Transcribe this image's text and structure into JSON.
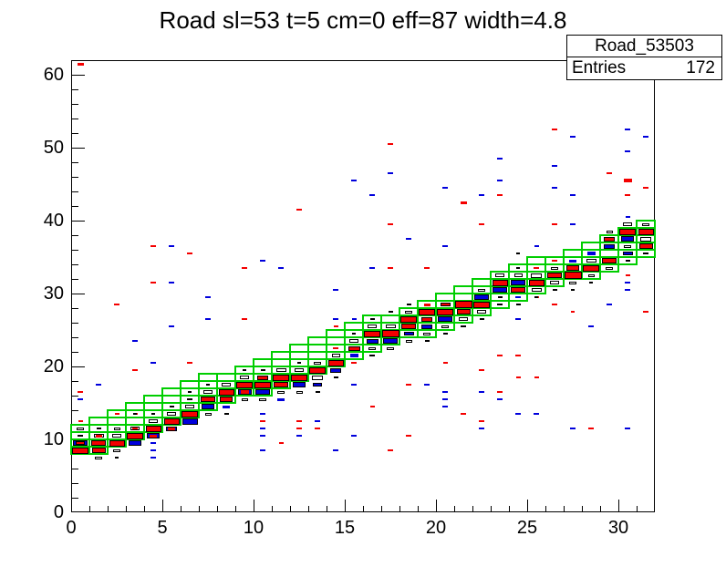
{
  "title": "Road sl=53 t=5 cm=0 eff=87 width=4.8",
  "stats": {
    "name": "Road_53503",
    "entries_label": "Entries",
    "entries_value": "172"
  },
  "chart_data": {
    "type": "heatmap",
    "title": "Road sl=53 t=5 cm=0 eff=87 width=4.8",
    "xlabel": "",
    "ylabel": "",
    "x_range": [
      0,
      32
    ],
    "y_range": [
      0,
      62
    ],
    "x_major_ticks": [
      0,
      5,
      10,
      15,
      20,
      25,
      30
    ],
    "x_minor_step": 1,
    "y_major_ticks": [
      0,
      10,
      20,
      30,
      40,
      50,
      60
    ],
    "y_minor_step": 2,
    "grid": false,
    "legend": false,
    "colors": {
      "road_green": "#00CE00",
      "hit_red": "#F40000",
      "hit_blue": "#0000DC",
      "hit_black": "#000000",
      "hit_hollow_fill": "#FFFFFF",
      "axis": "#000000"
    },
    "road": {
      "n_columns": 32,
      "center_start": 10.0,
      "slope_per_bin": 0.887,
      "half_width": 2.4,
      "width_label": 4.8
    },
    "hits": {
      "white": [
        [
          0,
          11,
          0.4
        ],
        [
          1,
          10,
          0.55
        ],
        [
          1,
          7,
          0.4
        ],
        [
          2,
          10,
          0.5
        ],
        [
          2,
          11,
          0.35
        ],
        [
          2,
          8,
          0.4
        ],
        [
          3,
          11,
          0.5
        ],
        [
          4,
          12,
          0.5
        ],
        [
          5,
          13,
          0.5
        ],
        [
          6,
          14,
          0.5
        ],
        [
          6,
          15,
          0.3
        ],
        [
          7,
          16,
          0.5
        ],
        [
          7,
          13,
          0.35
        ],
        [
          8,
          17,
          0.5
        ],
        [
          9,
          18,
          0.5
        ],
        [
          9,
          15,
          0.35
        ],
        [
          10,
          15,
          0.4
        ],
        [
          11,
          19,
          0.55
        ],
        [
          11,
          16,
          0.4
        ],
        [
          12,
          19,
          0.5
        ],
        [
          12,
          16,
          0.35
        ],
        [
          13,
          18,
          0.6
        ],
        [
          13,
          20,
          0.4
        ],
        [
          14,
          21,
          0.45
        ],
        [
          15,
          23,
          0.5
        ],
        [
          16,
          25,
          0.5
        ],
        [
          16,
          22,
          0.4
        ],
        [
          17,
          25,
          0.55
        ],
        [
          17,
          22,
          0.4
        ],
        [
          18,
          27,
          0.4
        ],
        [
          18,
          23,
          0.35
        ],
        [
          19,
          24,
          0.4
        ],
        [
          20,
          25,
          0.4
        ],
        [
          21,
          26,
          0.5
        ],
        [
          22,
          27,
          0.5
        ],
        [
          22,
          30,
          0.4
        ],
        [
          23,
          32,
          0.5
        ],
        [
          23,
          28,
          0.3
        ],
        [
          24,
          32,
          0.45
        ],
        [
          25,
          32,
          0.6
        ],
        [
          25,
          30,
          0.55
        ],
        [
          26,
          31,
          0.5
        ],
        [
          26,
          33,
          0.4
        ],
        [
          27,
          31,
          0.4
        ],
        [
          28,
          34,
          0.55
        ],
        [
          28,
          32,
          0.35
        ],
        [
          29,
          33,
          0.4
        ],
        [
          29,
          38,
          0.35
        ],
        [
          30,
          39,
          0.5
        ],
        [
          30,
          36,
          0.4
        ],
        [
          31,
          37,
          0.6
        ],
        [
          31,
          39,
          0.4
        ]
      ],
      "blue": [
        [
          0,
          9,
          0.8
        ],
        [
          1,
          8,
          0.45
        ],
        [
          3,
          9,
          0.7
        ],
        [
          4,
          10,
          0.7
        ],
        [
          5,
          11,
          0.6
        ],
        [
          6,
          12,
          0.85
        ],
        [
          7,
          14,
          0.7
        ],
        [
          8,
          14,
          0.4
        ],
        [
          9,
          16,
          0.75
        ],
        [
          10,
          16,
          0.8
        ],
        [
          11,
          15,
          0.4
        ],
        [
          12,
          17,
          0.7
        ],
        [
          13,
          17,
          0.5
        ],
        [
          14,
          19,
          0.6
        ],
        [
          15,
          21,
          0.45
        ],
        [
          16,
          23,
          0.65
        ],
        [
          17,
          23,
          0.8
        ],
        [
          18,
          24,
          0.55
        ],
        [
          19,
          25,
          0.6
        ],
        [
          20,
          26,
          0.8
        ],
        [
          21,
          27,
          0.45
        ],
        [
          22,
          29,
          0.8
        ],
        [
          23,
          30,
          0.8
        ],
        [
          24,
          31,
          0.8
        ],
        [
          24,
          29,
          0.3
        ],
        [
          27,
          34,
          0.4
        ],
        [
          28,
          35,
          0.45
        ],
        [
          29,
          36,
          0.6
        ],
        [
          30,
          37,
          0.7
        ],
        [
          30,
          35,
          0.55
        ],
        [
          31,
          36,
          0.5
        ],
        [
          15,
          45,
          0.3
        ],
        [
          10,
          34,
          0.3
        ],
        [
          11,
          33,
          0.3
        ],
        [
          5,
          36,
          0.3
        ],
        [
          30,
          52,
          0.3
        ],
        [
          27,
          51,
          0.3
        ],
        [
          31,
          51,
          0.3
        ],
        [
          30,
          49,
          0.3
        ],
        [
          23,
          48,
          0.3
        ],
        [
          26,
          47,
          0.3
        ],
        [
          17,
          46,
          0.3
        ],
        [
          23,
          45,
          0.3
        ],
        [
          26,
          44,
          0.3
        ],
        [
          20,
          44,
          0.3
        ],
        [
          16,
          43,
          0.3
        ],
        [
          22,
          43,
          0.3
        ],
        [
          27,
          43,
          0.3
        ],
        [
          27,
          39,
          0.3
        ],
        [
          30,
          40,
          0.25
        ],
        [
          18,
          37,
          0.3
        ],
        [
          20,
          36,
          0.3
        ],
        [
          25,
          36,
          0.25
        ],
        [
          16,
          33,
          0.3
        ],
        [
          5,
          31,
          0.3
        ],
        [
          14,
          30,
          0.3
        ],
        [
          7,
          29,
          0.3
        ],
        [
          7,
          26,
          0.3
        ],
        [
          14,
          26,
          0.3
        ],
        [
          15,
          26,
          0.25
        ],
        [
          5,
          25,
          0.3
        ],
        [
          3,
          23,
          0.3
        ],
        [
          4,
          20,
          0.3
        ],
        [
          1,
          17,
          0.3
        ],
        [
          0,
          15,
          0.3
        ],
        [
          29,
          28,
          0.3
        ],
        [
          24,
          26,
          0.3
        ],
        [
          28,
          25,
          0.3
        ],
        [
          30,
          31,
          0.3
        ],
        [
          30,
          30,
          0.3
        ],
        [
          15,
          17,
          0.3
        ],
        [
          19,
          17,
          0.3
        ],
        [
          22,
          16,
          0.3
        ],
        [
          23,
          15,
          0.3
        ],
        [
          20,
          16,
          0.3
        ],
        [
          20,
          15,
          0.3
        ],
        [
          20,
          14,
          0.3
        ],
        [
          24,
          13,
          0.3
        ],
        [
          25,
          13,
          0.3
        ],
        [
          22,
          11,
          0.3
        ],
        [
          27,
          11,
          0.3
        ],
        [
          30,
          11,
          0.3
        ],
        [
          10,
          13,
          0.3
        ],
        [
          13,
          12,
          0.3
        ],
        [
          10,
          11,
          0.3
        ],
        [
          10,
          10,
          0.3
        ],
        [
          12,
          10,
          0.3
        ],
        [
          15,
          10,
          0.3
        ],
        [
          10,
          8,
          0.3
        ],
        [
          14,
          8,
          0.3
        ],
        [
          4,
          9,
          0.3
        ],
        [
          4,
          8,
          0.3
        ],
        [
          4,
          7,
          0.3
        ]
      ],
      "red": [
        [
          0,
          8,
          0.9
        ],
        [
          0,
          9,
          0.5
        ],
        [
          1,
          9,
          0.8
        ],
        [
          1,
          8,
          0.75
        ],
        [
          1,
          10,
          0.35
        ],
        [
          2,
          9,
          0.85
        ],
        [
          3,
          10,
          0.9
        ],
        [
          3,
          11,
          0.3
        ],
        [
          4,
          11,
          0.85
        ],
        [
          4,
          10,
          0.4
        ],
        [
          5,
          12,
          0.85
        ],
        [
          5,
          11,
          0.4
        ],
        [
          6,
          13,
          0.9
        ],
        [
          7,
          15,
          0.8
        ],
        [
          8,
          16,
          0.85
        ],
        [
          8,
          15,
          0.7
        ],
        [
          9,
          17,
          0.9
        ],
        [
          9,
          16,
          0.45
        ],
        [
          10,
          17,
          0.9
        ],
        [
          10,
          18,
          0.6
        ],
        [
          11,
          18,
          0.9
        ],
        [
          11,
          17,
          0.8
        ],
        [
          12,
          18,
          0.9
        ],
        [
          13,
          19,
          0.9
        ],
        [
          14,
          20,
          0.85
        ],
        [
          14,
          22,
          0.3
        ],
        [
          15,
          22,
          0.65
        ],
        [
          15,
          20,
          0.3
        ],
        [
          16,
          24,
          0.9
        ],
        [
          17,
          24,
          0.95
        ],
        [
          18,
          26,
          0.9
        ],
        [
          18,
          25,
          0.8
        ],
        [
          19,
          27,
          0.9
        ],
        [
          19,
          26,
          0.6
        ],
        [
          19,
          28,
          0.35
        ],
        [
          20,
          27,
          0.9
        ],
        [
          20,
          28,
          0.55
        ],
        [
          21,
          28,
          0.95
        ],
        [
          21,
          27,
          0.75
        ],
        [
          22,
          28,
          0.9
        ],
        [
          23,
          31,
          0.85
        ],
        [
          24,
          30,
          0.8
        ],
        [
          25,
          31,
          0.85
        ],
        [
          25,
          33,
          0.3
        ],
        [
          26,
          32,
          0.8
        ],
        [
          26,
          34,
          0.3
        ],
        [
          27,
          32,
          0.95
        ],
        [
          27,
          33,
          0.7
        ],
        [
          28,
          33,
          0.9
        ],
        [
          29,
          34,
          0.8
        ],
        [
          29,
          37,
          0.6
        ],
        [
          30,
          38,
          0.9
        ],
        [
          31,
          38,
          0.85
        ],
        [
          31,
          36,
          0.75
        ],
        [
          0,
          61,
          0.35
        ],
        [
          12,
          41,
          0.3
        ],
        [
          4,
          36,
          0.3
        ],
        [
          6,
          35,
          0.3
        ],
        [
          9,
          33,
          0.3
        ],
        [
          17,
          50,
          0.3
        ],
        [
          26,
          52,
          0.3
        ],
        [
          29,
          46,
          0.3
        ],
        [
          30,
          45,
          0.45
        ],
        [
          31,
          44,
          0.3
        ],
        [
          23,
          43,
          0.3
        ],
        [
          30,
          43,
          0.3
        ],
        [
          21,
          42,
          0.35
        ],
        [
          17,
          39,
          0.3
        ],
        [
          22,
          39,
          0.3
        ],
        [
          26,
          39,
          0.3
        ],
        [
          17,
          33,
          0.3
        ],
        [
          19,
          33,
          0.3
        ],
        [
          2,
          28,
          0.3
        ],
        [
          9,
          26,
          0.3
        ],
        [
          14,
          25,
          0.25
        ],
        [
          4,
          31,
          0.3
        ],
        [
          3,
          19,
          0.3
        ],
        [
          6,
          20,
          0.3
        ],
        [
          30,
          32,
          0.25
        ],
        [
          25,
          29,
          0.25
        ],
        [
          26,
          28,
          0.3
        ],
        [
          27,
          27,
          0.2
        ],
        [
          31,
          27,
          0.3
        ],
        [
          23,
          21,
          0.3
        ],
        [
          24,
          21,
          0.3
        ],
        [
          22,
          19,
          0.3
        ],
        [
          24,
          18,
          0.25
        ],
        [
          25,
          18,
          0.25
        ],
        [
          23,
          16,
          0.3
        ],
        [
          18,
          17,
          0.3
        ],
        [
          20,
          20,
          0.25
        ],
        [
          16,
          14,
          0.25
        ],
        [
          21,
          13,
          0.3
        ],
        [
          10,
          12,
          0.3
        ],
        [
          12,
          12,
          0.3
        ],
        [
          22,
          12,
          0.3
        ],
        [
          12,
          11,
          0.3
        ],
        [
          13,
          11,
          0.3
        ],
        [
          11,
          9,
          0.25
        ],
        [
          18,
          10,
          0.3
        ],
        [
          17,
          8,
          0.3
        ],
        [
          28,
          11,
          0.3
        ],
        [
          0,
          16,
          0.3
        ],
        [
          0,
          12,
          0.25
        ],
        [
          2,
          13,
          0.25
        ],
        [
          3,
          13,
          0.25
        ]
      ],
      "black": [
        [
          0,
          10,
          0.3
        ],
        [
          1,
          11,
          0.25
        ],
        [
          2,
          7,
          0.2
        ],
        [
          3,
          13,
          0.2
        ],
        [
          4,
          13,
          0.2
        ],
        [
          5,
          14,
          0.25
        ],
        [
          6,
          16,
          0.2
        ],
        [
          7,
          17,
          0.2
        ],
        [
          8,
          13,
          0.25
        ],
        [
          9,
          19,
          0.2
        ],
        [
          10,
          19,
          0.25
        ],
        [
          12,
          20,
          0.2
        ],
        [
          13,
          16,
          0.25
        ],
        [
          14,
          18,
          0.25
        ],
        [
          15,
          24,
          0.2
        ],
        [
          16,
          26,
          0.25
        ],
        [
          16,
          21,
          0.3
        ],
        [
          17,
          27,
          0.25
        ],
        [
          18,
          28,
          0.25
        ],
        [
          19,
          23,
          0.25
        ],
        [
          20,
          24,
          0.25
        ],
        [
          21,
          25,
          0.3
        ],
        [
          22,
          26,
          0.25
        ],
        [
          23,
          29,
          0.25
        ],
        [
          24,
          33,
          0.2
        ],
        [
          25,
          29,
          0.2
        ],
        [
          26,
          30,
          0.25
        ],
        [
          27,
          30,
          0.2
        ],
        [
          28,
          31,
          0.2
        ],
        [
          30,
          34,
          0.25
        ],
        [
          31,
          35,
          0.3
        ],
        [
          24,
          35,
          0.2
        ],
        [
          24,
          28,
          0.25
        ]
      ]
    }
  }
}
